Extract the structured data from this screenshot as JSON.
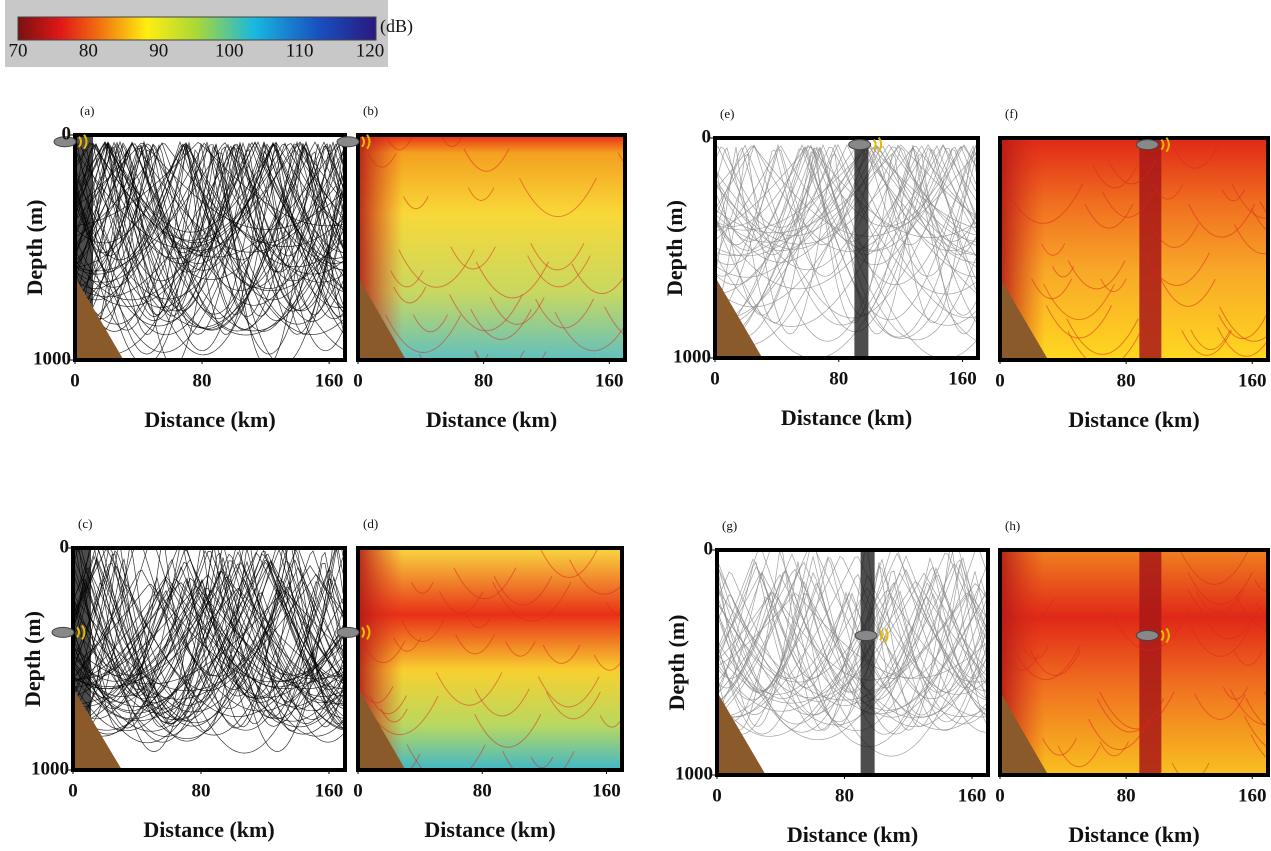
{
  "colorbar": {
    "unit": "(dB)",
    "ticks": [
      70,
      80,
      90,
      100,
      110,
      120
    ],
    "lim": [
      70,
      120
    ]
  },
  "panels": [
    {
      "label": "(a)",
      "kind": "rays",
      "color": "#000000",
      "ylabel": "Depth (m)",
      "xlabel": "Distance (km)",
      "xticks": [
        0,
        80,
        160
      ],
      "yticks": [
        0,
        1000
      ],
      "xlim": [
        0,
        170
      ],
      "ylim": [
        0,
        1000
      ]
    },
    {
      "label": "(b)",
      "kind": "tl",
      "xlabel": "Distance (km)",
      "xticks": [
        0,
        80,
        160
      ],
      "xlim": [
        0,
        170
      ],
      "ylim": [
        0,
        1000
      ]
    },
    {
      "label": "(e)",
      "kind": "rays",
      "color": "#8a8a8a",
      "ylabel": "Depth (m)",
      "xlabel": "Distance (km)",
      "xticks": [
        0,
        80,
        160
      ],
      "yticks": [
        0,
        1000
      ],
      "xlim": [
        0,
        170
      ],
      "ylim": [
        0,
        1000
      ]
    },
    {
      "label": "(f)",
      "kind": "tl",
      "xlabel": "Distance (km)",
      "xticks": [
        0,
        80,
        160
      ],
      "xlim": [
        0,
        170
      ],
      "ylim": [
        0,
        1000
      ]
    },
    {
      "label": "(c)",
      "kind": "rays",
      "color": "#000000",
      "ylabel": "Depth (m)",
      "xlabel": "Distance (km)",
      "xticks": [
        0,
        80,
        160
      ],
      "yticks": [
        0,
        1000
      ],
      "xlim": [
        0,
        170
      ],
      "ylim": [
        0,
        1000
      ]
    },
    {
      "label": "(d)",
      "kind": "tl",
      "xlabel": "Distance (km)",
      "xticks": [
        0,
        80,
        160
      ],
      "xlim": [
        0,
        170
      ],
      "ylim": [
        0,
        1000
      ]
    },
    {
      "label": "(g)",
      "kind": "rays",
      "color": "#8a8a8a",
      "ylabel": "Depth (m)",
      "xlabel": "Distance (km)",
      "xticks": [
        0,
        80,
        160
      ],
      "yticks": [
        0,
        1000
      ],
      "xlim": [
        0,
        170
      ],
      "ylim": [
        0,
        1000
      ]
    },
    {
      "label": "(h)",
      "kind": "tl",
      "xlabel": "Distance (km)",
      "xticks": [
        0,
        80,
        160
      ],
      "xlim": [
        0,
        170
      ],
      "ylim": [
        0,
        1000
      ]
    }
  ]
}
